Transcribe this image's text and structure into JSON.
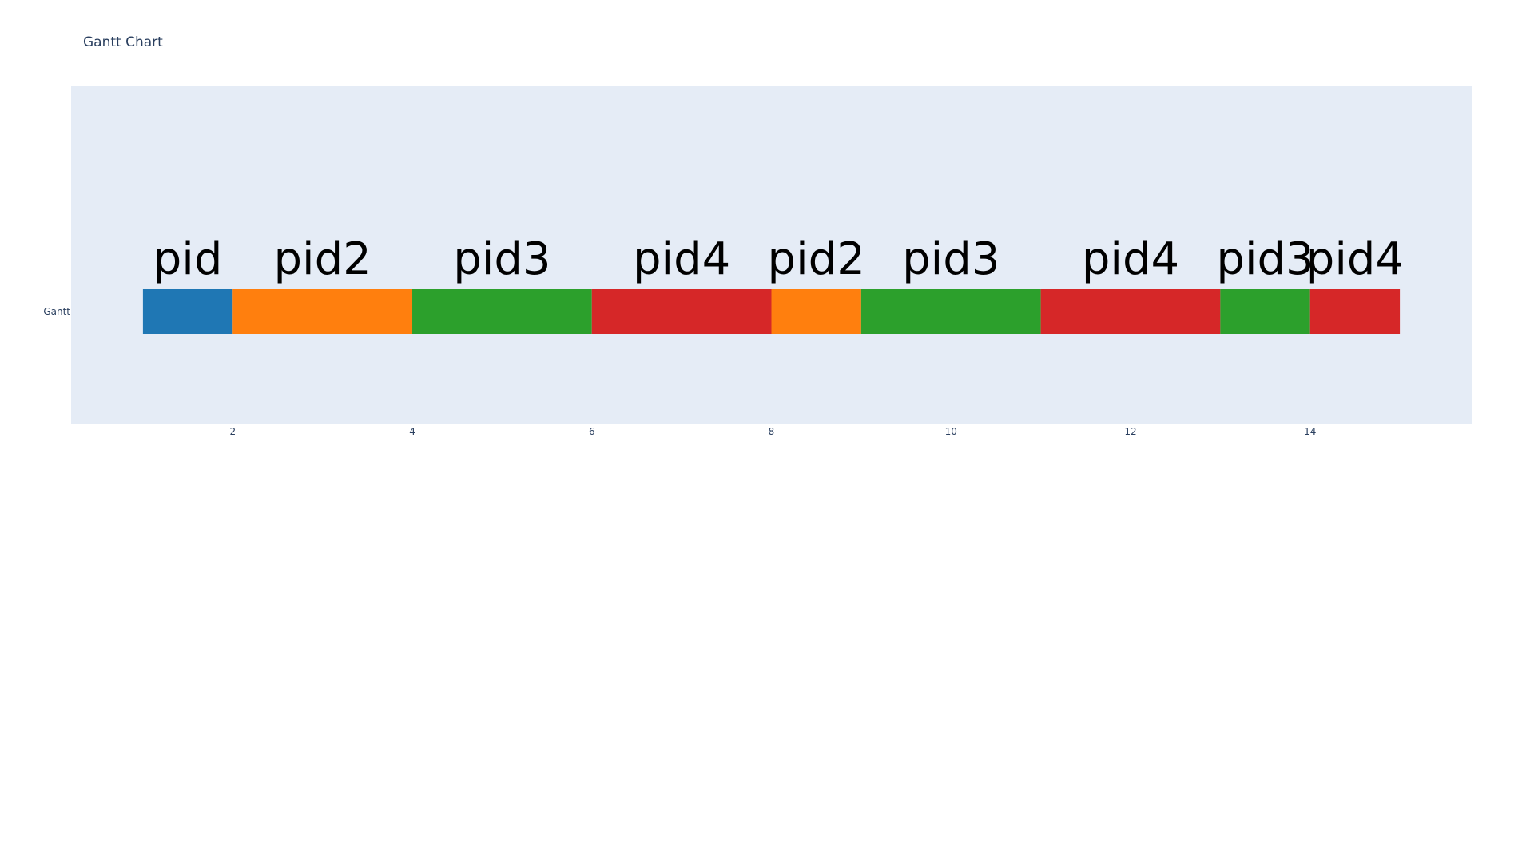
{
  "chart_data": {
    "type": "bar",
    "orientation": "horizontal",
    "title": "Gantt Chart",
    "xlabel": "",
    "ylabel": "",
    "categories": [
      "Gantt"
    ],
    "xlim": [
      0.2,
      15.8
    ],
    "x_ticks": [
      2,
      4,
      6,
      8,
      10,
      12,
      14
    ],
    "grid": false,
    "legend": "none",
    "plot_background": "#e5ecf6",
    "segments": [
      {
        "label": "pid",
        "start": 1,
        "end": 2,
        "color": "#1f77b4"
      },
      {
        "label": "pid2",
        "start": 2,
        "end": 4,
        "color": "#ff7f0e"
      },
      {
        "label": "pid3",
        "start": 4,
        "end": 6,
        "color": "#2ca02c"
      },
      {
        "label": "pid4",
        "start": 6,
        "end": 8,
        "color": "#d62728"
      },
      {
        "label": "pid2",
        "start": 8,
        "end": 9,
        "color": "#ff7f0e"
      },
      {
        "label": "pid3",
        "start": 9,
        "end": 11,
        "color": "#2ca02c"
      },
      {
        "label": "pid4",
        "start": 11,
        "end": 13,
        "color": "#d62728"
      },
      {
        "label": "pid3",
        "start": 13,
        "end": 14,
        "color": "#2ca02c"
      },
      {
        "label": "pid4",
        "start": 14,
        "end": 15,
        "color": "#d62728"
      }
    ]
  }
}
